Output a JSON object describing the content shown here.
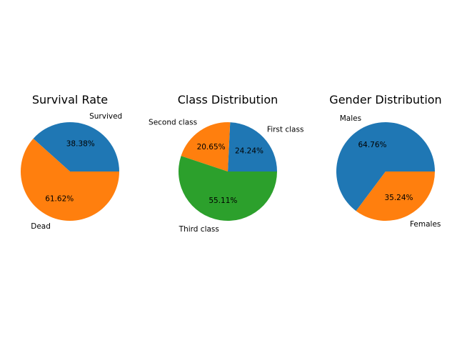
{
  "chart_data": [
    {
      "type": "pie",
      "title": "Survival Rate",
      "labels": [
        "Survived",
        "Dead"
      ],
      "values": [
        38.38,
        61.62
      ],
      "autopct": [
        "38.38%",
        "61.62%"
      ],
      "colors": [
        "#1f77b4",
        "#ff7f0e"
      ]
    },
    {
      "type": "pie",
      "title": "Class Distribution",
      "labels": [
        "First class",
        "Second class",
        "Third class"
      ],
      "values": [
        24.24,
        20.65,
        55.11
      ],
      "autopct": [
        "24.24%",
        "20.65%",
        "55.11%"
      ],
      "colors": [
        "#1f77b4",
        "#ff7f0e",
        "#2ca02c"
      ]
    },
    {
      "type": "pie",
      "title": "Gender Distribution",
      "labels": [
        "Males",
        "Females"
      ],
      "values": [
        64.76,
        35.24
      ],
      "autopct": [
        "64.76%",
        "35.24%"
      ],
      "colors": [
        "#1f77b4",
        "#ff7f0e"
      ]
    }
  ]
}
